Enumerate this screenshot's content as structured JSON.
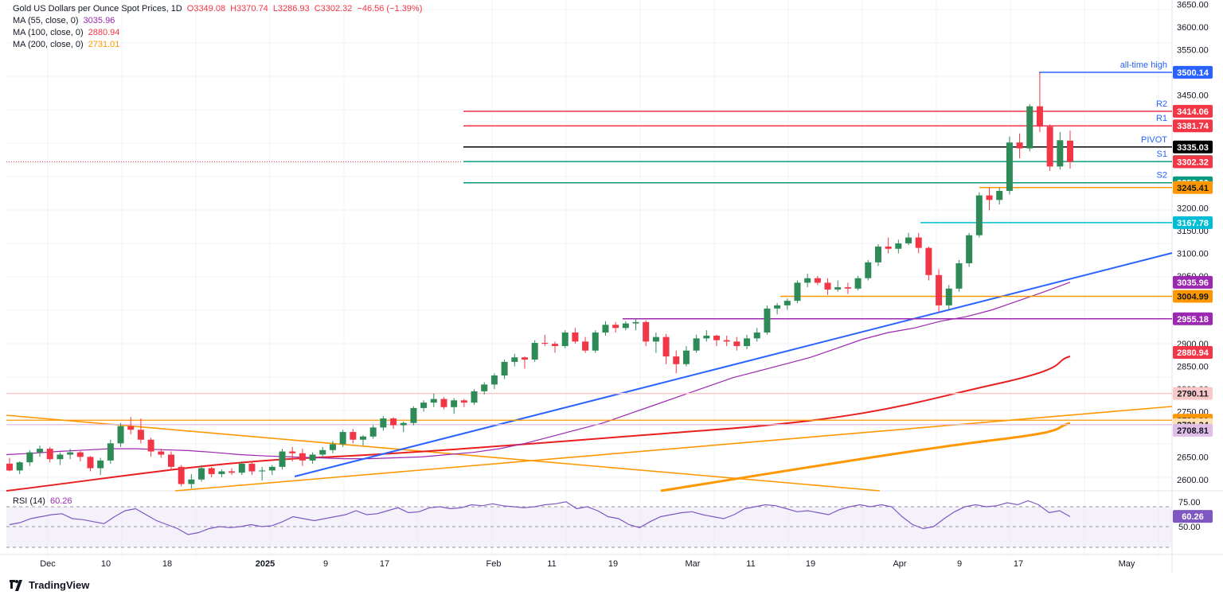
{
  "header": {
    "title": "Gold US Dollars per Ounce Spot Prices, 1D",
    "open": "O3349.08",
    "high": "H3370.74",
    "low": "L3286.93",
    "close": "C3302.32",
    "change": "−46.56 (−1.39%)",
    "ma55_label": "MA (55, close, 0)",
    "ma55_value": "3035.96",
    "ma100_label": "MA (100, close, 0)",
    "ma100_value": "2880.94",
    "ma200_label": "MA (200, close, 0)",
    "ma200_value": "2731.01"
  },
  "rsi": {
    "label": "RSI (14)",
    "value": "60.26"
  },
  "footer": {
    "brand": "TradingView"
  },
  "colors": {
    "up": "#26a69a",
    "up_body": "#2e8b57",
    "down": "#f23645",
    "ma55": "#9c27b0",
    "ma100": "#e91e1e",
    "ma200": "#ff9800",
    "trend_blue": "#2962ff",
    "cyan": "#00bcd4",
    "green_line": "#089981"
  },
  "chart_data": {
    "type": "candlestick",
    "x_tick_labels": [
      "Dec",
      "10",
      "18",
      "2025",
      "9",
      "17",
      "Feb",
      "11",
      "19",
      "Mar",
      "11",
      "19",
      "Apr",
      "9",
      "17",
      "May"
    ],
    "y_tick_labels": [
      "3650.00",
      "3600.00",
      "3550.00",
      "3450.00",
      "3200.00",
      "3150.00",
      "3100.00",
      "3050.00",
      "2950.00",
      "2900.00",
      "2850.00",
      "2800.00",
      "2750.00",
      "2650.00",
      "2600.00"
    ],
    "ylim": [
      2575,
      3660
    ],
    "rsi_ticks": [
      "75.00",
      "50.00"
    ],
    "levels": [
      {
        "name": "all-time high",
        "value": 3500.14,
        "label": "3500.14",
        "tag": "all-time high",
        "color": "#2962ff"
      },
      {
        "name": "R2",
        "value": 3414.06,
        "label": "3414.06",
        "tag": "R2",
        "color": "#f23645"
      },
      {
        "name": "R1",
        "value": 3381.74,
        "label": "3381.74",
        "tag": "R1",
        "color": "#f23645"
      },
      {
        "name": "PIVOT",
        "value": 3335.03,
        "label": "3335.03",
        "tag": "PIVOT",
        "color": "#000000"
      },
      {
        "name": "S1",
        "value": 3302.71,
        "label": "3302.71",
        "tag": "S1",
        "color": "#089981"
      },
      {
        "name": "S2",
        "value": 3256.0,
        "label": "3256.00",
        "tag": "S2",
        "color": "#089981"
      },
      {
        "name": "support-3245",
        "value": 3245.41,
        "label": "3245.41",
        "tag": "",
        "color": "#ff9800"
      },
      {
        "name": "support-3167",
        "value": 3167.78,
        "label": "3167.78",
        "tag": "",
        "color": "#00bcd4"
      },
      {
        "name": "support-3004",
        "value": 3004.99,
        "label": "3004.99",
        "tag": "",
        "color": "#ff9800"
      },
      {
        "name": "support-2955",
        "value": 2955.18,
        "label": "2955.18",
        "tag": "",
        "color": "#9c27b0"
      }
    ],
    "axis_labels": [
      {
        "value": 3302.32,
        "label": "3302.32",
        "color": "#f23645"
      },
      {
        "value": 3035.96,
        "label": "3035.96",
        "color": "#9c27b0"
      },
      {
        "value": 2880.94,
        "label": "2880.94",
        "color": "#f23645"
      },
      {
        "value": 2790.11,
        "label": "2790.11",
        "color": "#f8c8c8"
      },
      {
        "value": 2731.01,
        "label": "2731.01",
        "color": "#ff9800"
      },
      {
        "value": 2721.34,
        "label": "2721.34",
        "color": "#ffe0b2"
      },
      {
        "value": 2708.81,
        "label": "2708.81",
        "color": "#e1bee7"
      }
    ],
    "candles_ohlc": [
      [
        2635,
        2648,
        2618,
        2620
      ],
      [
        2620,
        2640,
        2612,
        2638
      ],
      [
        2638,
        2665,
        2630,
        2660
      ],
      [
        2660,
        2675,
        2650,
        2668
      ],
      [
        2668,
        2672,
        2638,
        2645
      ],
      [
        2645,
        2660,
        2632,
        2655
      ],
      [
        2655,
        2668,
        2645,
        2660
      ],
      [
        2660,
        2663,
        2640,
        2650
      ],
      [
        2650,
        2652,
        2618,
        2625
      ],
      [
        2625,
        2648,
        2610,
        2642
      ],
      [
        2642,
        2688,
        2635,
        2680
      ],
      [
        2680,
        2725,
        2672,
        2718
      ],
      [
        2718,
        2738,
        2700,
        2710
      ],
      [
        2710,
        2735,
        2680,
        2688
      ],
      [
        2688,
        2692,
        2650,
        2662
      ],
      [
        2662,
        2668,
        2648,
        2655
      ],
      [
        2655,
        2662,
        2620,
        2628
      ],
      [
        2628,
        2632,
        2585,
        2590
      ],
      [
        2590,
        2612,
        2580,
        2600
      ],
      [
        2600,
        2632,
        2595,
        2625
      ],
      [
        2625,
        2628,
        2605,
        2612
      ],
      [
        2612,
        2622,
        2605,
        2618
      ],
      [
        2618,
        2625,
        2610,
        2615
      ],
      [
        2615,
        2640,
        2610,
        2635
      ],
      [
        2635,
        2640,
        2610,
        2618
      ],
      [
        2618,
        2628,
        2598,
        2620
      ],
      [
        2620,
        2632,
        2610,
        2628
      ],
      [
        2628,
        2668,
        2622,
        2662
      ],
      [
        2662,
        2672,
        2640,
        2658
      ],
      [
        2658,
        2668,
        2630,
        2642
      ],
      [
        2642,
        2660,
        2635,
        2655
      ],
      [
        2655,
        2672,
        2648,
        2665
      ],
      [
        2665,
        2685,
        2658,
        2678
      ],
      [
        2678,
        2710,
        2672,
        2705
      ],
      [
        2705,
        2712,
        2680,
        2688
      ],
      [
        2688,
        2698,
        2675,
        2695
      ],
      [
        2695,
        2720,
        2690,
        2715
      ],
      [
        2715,
        2740,
        2708,
        2735
      ],
      [
        2735,
        2738,
        2712,
        2720
      ],
      [
        2720,
        2728,
        2705,
        2725
      ],
      [
        2725,
        2762,
        2720,
        2758
      ],
      [
        2758,
        2775,
        2750,
        2770
      ],
      [
        2770,
        2790,
        2760,
        2778
      ],
      [
        2778,
        2782,
        2755,
        2760
      ],
      [
        2760,
        2780,
        2745,
        2775
      ],
      [
        2775,
        2778,
        2760,
        2770
      ],
      [
        2770,
        2800,
        2765,
        2795
      ],
      [
        2795,
        2815,
        2788,
        2810
      ],
      [
        2810,
        2835,
        2800,
        2830
      ],
      [
        2830,
        2865,
        2822,
        2860
      ],
      [
        2860,
        2878,
        2850,
        2870
      ],
      [
        2870,
        2872,
        2845,
        2865
      ],
      [
        2865,
        2908,
        2860,
        2902
      ],
      [
        2902,
        2920,
        2895,
        2900
      ],
      [
        2900,
        2905,
        2880,
        2895
      ],
      [
        2895,
        2930,
        2890,
        2925
      ],
      [
        2925,
        2935,
        2900,
        2905
      ],
      [
        2905,
        2915,
        2880,
        2885
      ],
      [
        2885,
        2930,
        2880,
        2925
      ],
      [
        2925,
        2950,
        2918,
        2942
      ],
      [
        2942,
        2948,
        2925,
        2935
      ],
      [
        2935,
        2950,
        2930,
        2945
      ],
      [
        2945,
        2955,
        2930,
        2948
      ],
      [
        2948,
        2952,
        2895,
        2905
      ],
      [
        2905,
        2925,
        2880,
        2915
      ],
      [
        2915,
        2922,
        2855,
        2872
      ],
      [
        2872,
        2885,
        2835,
        2855
      ],
      [
        2855,
        2895,
        2850,
        2885
      ],
      [
        2885,
        2920,
        2880,
        2912
      ],
      [
        2912,
        2930,
        2905,
        2918
      ],
      [
        2918,
        2920,
        2895,
        2908
      ],
      [
        2908,
        2918,
        2895,
        2905
      ],
      [
        2905,
        2915,
        2885,
        2895
      ],
      [
        2895,
        2920,
        2888,
        2912
      ],
      [
        2912,
        2935,
        2905,
        2925
      ],
      [
        2925,
        2985,
        2920,
        2978
      ],
      [
        2978,
        2990,
        2965,
        2985
      ],
      [
        2985,
        3000,
        2975,
        2995
      ],
      [
        2995,
        3040,
        2990,
        3035
      ],
      [
        3035,
        3055,
        3025,
        3045
      ],
      [
        3045,
        3050,
        3030,
        3035
      ],
      [
        3035,
        3045,
        3008,
        3020
      ],
      [
        3020,
        3040,
        3015,
        3025
      ],
      [
        3025,
        3035,
        3010,
        3022
      ],
      [
        3022,
        3050,
        3018,
        3045
      ],
      [
        3045,
        3085,
        3040,
        3080
      ],
      [
        3080,
        3120,
        3072,
        3115
      ],
      [
        3115,
        3135,
        3100,
        3110
      ],
      [
        3110,
        3130,
        3100,
        3122
      ],
      [
        3122,
        3145,
        3118,
        3135
      ],
      [
        3135,
        3145,
        3100,
        3112
      ],
      [
        3112,
        3115,
        3040,
        3052
      ],
      [
        3052,
        3065,
        2970,
        2985
      ],
      [
        2985,
        3030,
        2975,
        3022
      ],
      [
        3022,
        3085,
        3015,
        3078
      ],
      [
        3078,
        3145,
        3070,
        3140
      ],
      [
        3140,
        3235,
        3135,
        3228
      ],
      [
        3228,
        3245,
        3195,
        3218
      ],
      [
        3218,
        3245,
        3208,
        3238
      ],
      [
        3238,
        3358,
        3230,
        3345
      ],
      [
        3345,
        3365,
        3310,
        3332
      ],
      [
        3332,
        3430,
        3325,
        3425
      ],
      [
        3425,
        3500,
        3368,
        3380
      ],
      [
        3380,
        3385,
        3282,
        3292
      ],
      [
        3292,
        3368,
        3285,
        3350
      ],
      [
        3349,
        3371,
        3287,
        3302
      ]
    ],
    "ma_55": [
      2655,
      2658,
      2662,
      2665,
      2668,
      2668,
      2666,
      2664,
      2660,
      2655,
      2652,
      2650,
      2648,
      2646,
      2646,
      2648,
      2650,
      2655,
      2660,
      2668,
      2680,
      2695,
      2710,
      2725,
      2745,
      2765,
      2785,
      2805,
      2825,
      2840,
      2855,
      2870,
      2890,
      2910,
      2925,
      2935,
      2950,
      2960,
      2975,
      2995,
      3015,
      3036
    ],
    "rsi_values": [
      52,
      54,
      58,
      60,
      62,
      63,
      58,
      57,
      55,
      53,
      60,
      66,
      68,
      62,
      56,
      52,
      48,
      42,
      44,
      48,
      50,
      49,
      50,
      52,
      50,
      51,
      55,
      60,
      58,
      56,
      58,
      60,
      62,
      66,
      62,
      63,
      66,
      69,
      64,
      65,
      69,
      70,
      68,
      69,
      72,
      71,
      73,
      71,
      70,
      69,
      70,
      72,
      73,
      75,
      68,
      70,
      66,
      60,
      58,
      52,
      49,
      55,
      60,
      62,
      64,
      65,
      62,
      60,
      58,
      62,
      68,
      70,
      72,
      71,
      68,
      65,
      66,
      64,
      62,
      67,
      70,
      72,
      70,
      72,
      70,
      60,
      52,
      48,
      50,
      58,
      65,
      70,
      72,
      70,
      71,
      74,
      72,
      76,
      72,
      64,
      66,
      60
    ]
  }
}
